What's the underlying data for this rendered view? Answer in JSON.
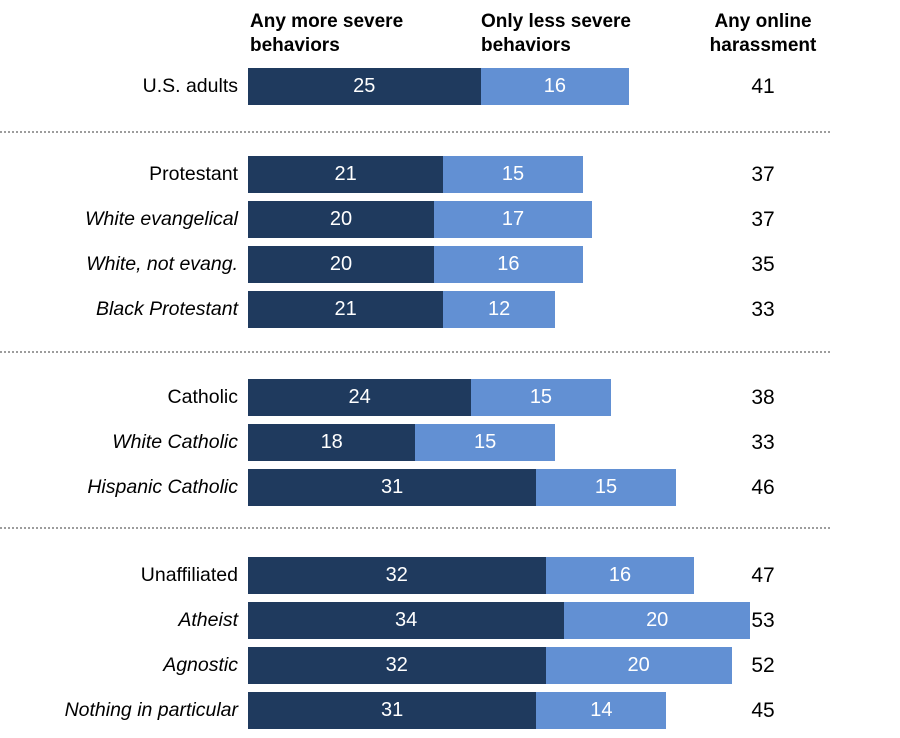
{
  "colors": {
    "severe_bar": "#1f3a5e",
    "less_severe_bar": "#6290d3",
    "bar_value_text": "#ffffff",
    "label_text": "#000000",
    "divider": "#9d9d9d",
    "background": "#ffffff"
  },
  "header": {
    "col_severe": "Any more severe behaviors",
    "col_less_severe": "Only less severe behaviors",
    "col_total": "Any online harassment"
  },
  "chart_data": {
    "type": "bar",
    "orientation": "horizontal",
    "stacked": true,
    "series_names": [
      "Any more severe behaviors",
      "Only less severe behaviors"
    ],
    "total_column_label": "Any online harassment",
    "value_axis_range": [
      0,
      53
    ],
    "grid": false,
    "legend_position": "column-headers-top",
    "groups": [
      {
        "rows": [
          {
            "label": "U.S. adults",
            "subgroup": false,
            "severe": 25,
            "less_severe": 16,
            "total": 41
          }
        ]
      },
      {
        "rows": [
          {
            "label": "Protestant",
            "subgroup": false,
            "severe": 21,
            "less_severe": 15,
            "total": 37
          },
          {
            "label": "White evangelical",
            "subgroup": true,
            "severe": 20,
            "less_severe": 17,
            "total": 37
          },
          {
            "label": "White, not evang.",
            "subgroup": true,
            "severe": 20,
            "less_severe": 16,
            "total": 35
          },
          {
            "label": "Black Protestant",
            "subgroup": true,
            "severe": 21,
            "less_severe": 12,
            "total": 33
          }
        ]
      },
      {
        "rows": [
          {
            "label": "Catholic",
            "subgroup": false,
            "severe": 24,
            "less_severe": 15,
            "total": 38
          },
          {
            "label": "White Catholic",
            "subgroup": true,
            "severe": 18,
            "less_severe": 15,
            "total": 33
          },
          {
            "label": "Hispanic Catholic",
            "subgroup": true,
            "severe": 31,
            "less_severe": 15,
            "total": 46
          }
        ]
      },
      {
        "rows": [
          {
            "label": "Unaffiliated",
            "subgroup": false,
            "severe": 32,
            "less_severe": 16,
            "total": 47
          },
          {
            "label": "Atheist",
            "subgroup": true,
            "severe": 34,
            "less_severe": 20,
            "total": 53
          },
          {
            "label": "Agnostic",
            "subgroup": true,
            "severe": 32,
            "less_severe": 20,
            "total": 52
          },
          {
            "label": "Nothing in particular",
            "subgroup": true,
            "severe": 31,
            "less_severe": 14,
            "total": 45
          }
        ]
      }
    ]
  }
}
